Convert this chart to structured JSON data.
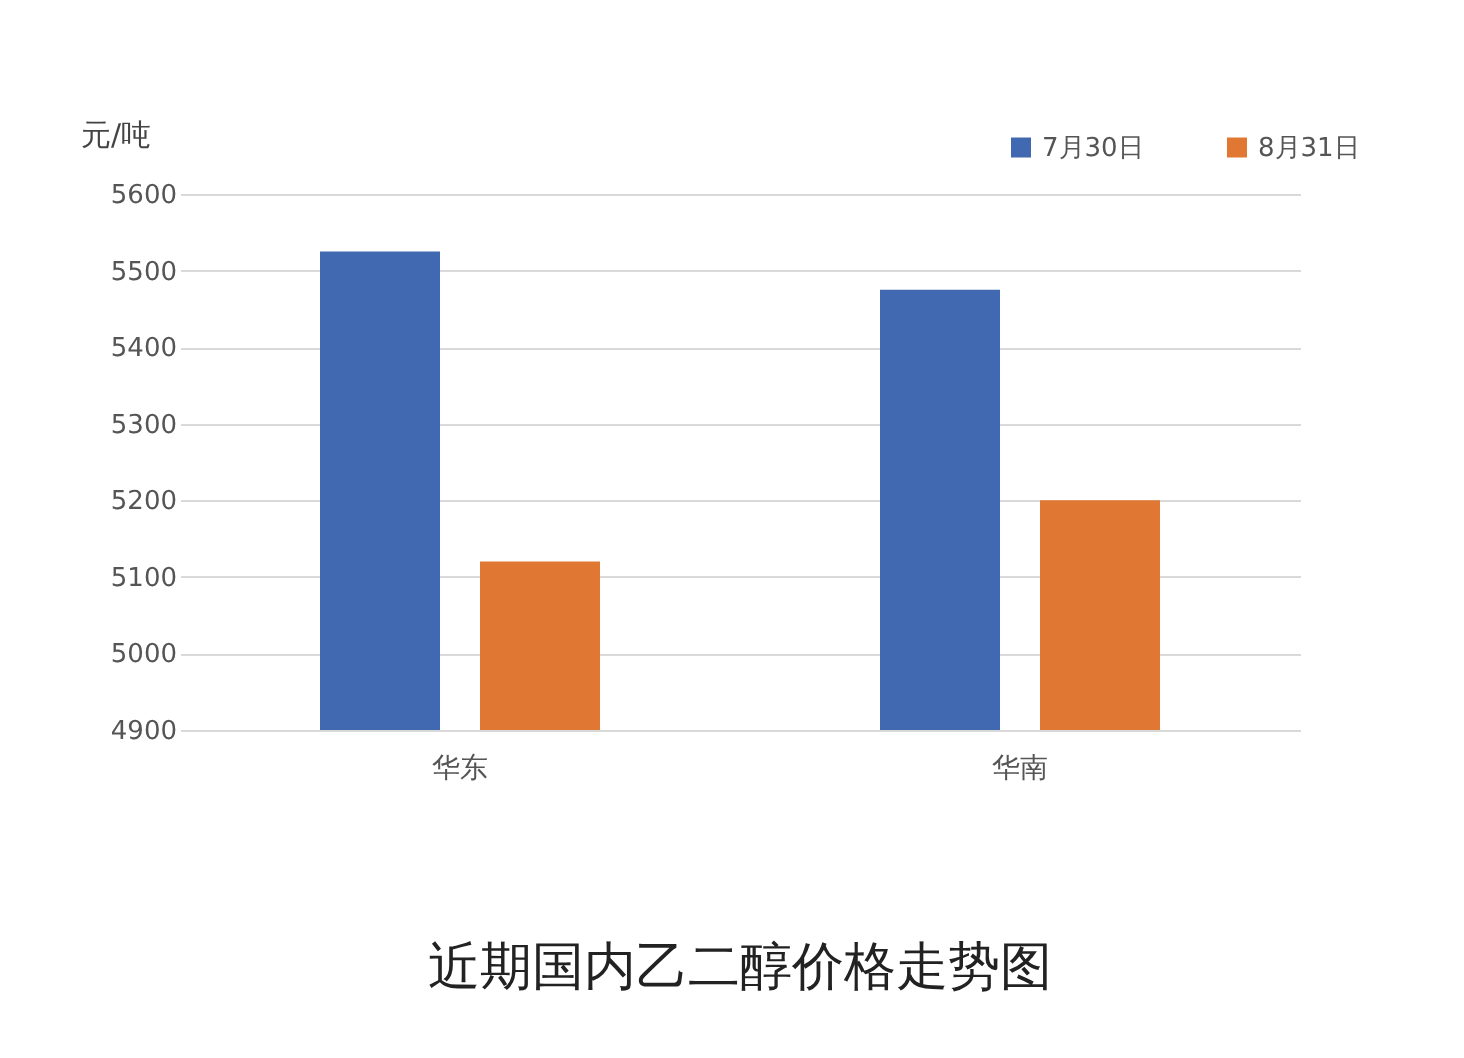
{
  "chart_data": {
    "type": "bar",
    "title": "近期国内乙二醇价格走势图",
    "ylabel": "元/吨",
    "categories": [
      "华东",
      "华南"
    ],
    "series": [
      {
        "name": "7月30日",
        "color": "#4169b1",
        "values": [
          5525,
          5475
        ]
      },
      {
        "name": "8月31日",
        "color": "#e07833",
        "values": [
          5120,
          5200
        ]
      }
    ],
    "ylim": [
      4900,
      5600
    ],
    "yticks": [
      4900,
      5000,
      5100,
      5200,
      5300,
      5400,
      5500,
      5600
    ],
    "grid": "y",
    "legend": "top right"
  }
}
